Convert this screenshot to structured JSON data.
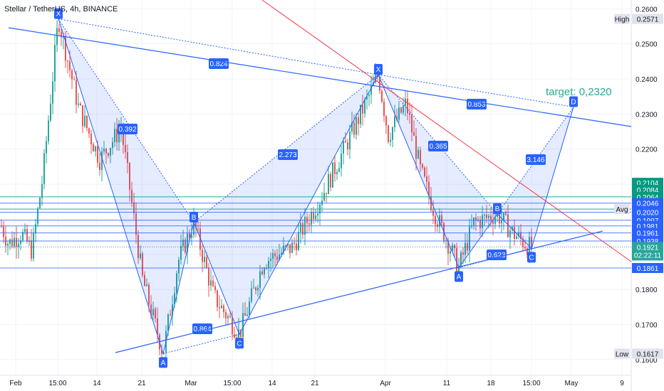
{
  "header": {
    "title": "Stellar / TetherUS, 4h, BINANCE"
  },
  "chart_data": {
    "type": "candlestick",
    "title": "Stellar / TetherUS, 4h, BINANCE",
    "x_ticks": [
      "Feb",
      "15:00",
      "14",
      "21",
      "Mar",
      "15:00",
      "14",
      "21",
      "Apr",
      "11",
      "18",
      "15:00",
      "May",
      "9"
    ],
    "y_ticks": [
      0.26,
      0.25,
      0.24,
      0.23,
      0.22,
      0.21,
      0.2,
      0.19,
      0.18,
      0.17,
      0.16
    ],
    "y_tick_labels": [
      "0.2600",
      "0.2500",
      "0.2400",
      "0.2300",
      "0.2200",
      "0.2100",
      "0.2000",
      "0.1900",
      "0.1800",
      "0.1700",
      "0.1600"
    ],
    "ylim": [
      0.1555,
      0.2625
    ],
    "price_marks": [
      {
        "label": "High",
        "value": "0.2571",
        "price": 0.2571,
        "color": "#e0e3eb",
        "text": "#131722"
      },
      {
        "label": "Avg",
        "value": "0.2029",
        "price": 0.2029,
        "color": "#e0e3eb",
        "text": "#131722"
      },
      {
        "label": "Low",
        "value": "0.1617",
        "price": 0.1617,
        "color": "#e0e3eb",
        "text": "#131722"
      }
    ],
    "level_lines": [
      {
        "value": "0.2046",
        "price": 0.2046,
        "color": "#2962ff"
      },
      {
        "value": "0.2020",
        "price": 0.202,
        "color": "#2962ff"
      },
      {
        "value": "0.1997",
        "price": 0.1997,
        "color": "#2962ff"
      },
      {
        "value": "0.1981",
        "price": 0.1981,
        "color": "#2962ff"
      },
      {
        "value": "0.1961",
        "price": 0.1961,
        "color": "#2962ff"
      },
      {
        "value": "0.1938",
        "price": 0.1938,
        "color": "#2962ff"
      },
      {
        "value": "0.1861",
        "price": 0.1861,
        "color": "#2962ff"
      }
    ],
    "green_badges": [
      {
        "value": "0.2104",
        "price": 0.2104
      },
      {
        "value": "0.2084",
        "price": 0.2084
      },
      {
        "value": "0.2064",
        "price": 0.2064
      }
    ],
    "current_price": {
      "value": "0.1921",
      "countdown": "02:22:11",
      "price": 0.1921,
      "color": "#26a69a"
    },
    "patterns": [
      {
        "points": [
          {
            "label": "X",
            "price": 0.2571
          },
          {
            "label": "A",
            "price": 0.1617
          },
          {
            "label": "B",
            "price": 0.1991
          },
          {
            "label": "C",
            "price": 0.1672
          },
          {
            "label": "D",
            "price": 0.2412
          }
        ],
        "ratios": [
          "0.392",
          "0.864",
          "2.273",
          "0.824"
        ]
      },
      {
        "points": [
          {
            "label": "X",
            "price": 0.2412
          },
          {
            "label": "A",
            "price": 0.1862
          },
          {
            "label": "B",
            "price": 0.2015
          },
          {
            "label": "C",
            "price": 0.1917
          },
          {
            "label": "D",
            "price": 0.232
          }
        ],
        "ratios": [
          "0.365",
          "0.623",
          "3.146",
          "0.853"
        ]
      }
    ],
    "target_label": "target: 0,2320",
    "target_price": 0.232,
    "colors": {
      "up": "#26a69a",
      "down": "#ef5350",
      "pattern": "#2962ff",
      "resistance": "#f23645",
      "level": "#2962ff",
      "teal_line": "#22ab94"
    }
  }
}
